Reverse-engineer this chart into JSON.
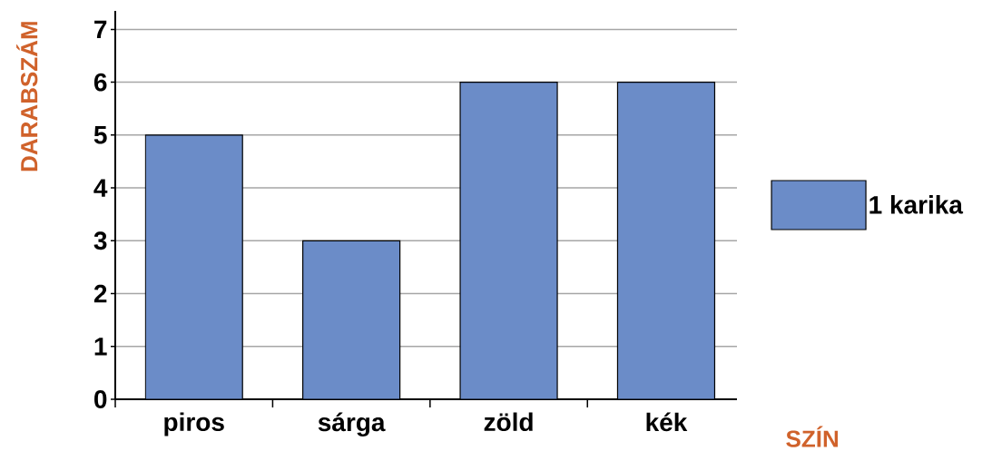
{
  "chart_data": {
    "type": "bar",
    "categories": [
      "piros",
      "sárga",
      "zöld",
      "kék"
    ],
    "series": [
      {
        "name": "1 karika",
        "color": "#6b8cc8",
        "values": [
          5,
          3,
          6,
          6
        ]
      }
    ],
    "xlabel": "SZÍN",
    "ylabel": "DARABSZÁM",
    "ylim": [
      0,
      7.35
    ],
    "yticks": [
      0,
      1,
      2,
      3,
      4,
      5,
      6,
      7
    ],
    "grid": "y",
    "legend": "right"
  }
}
